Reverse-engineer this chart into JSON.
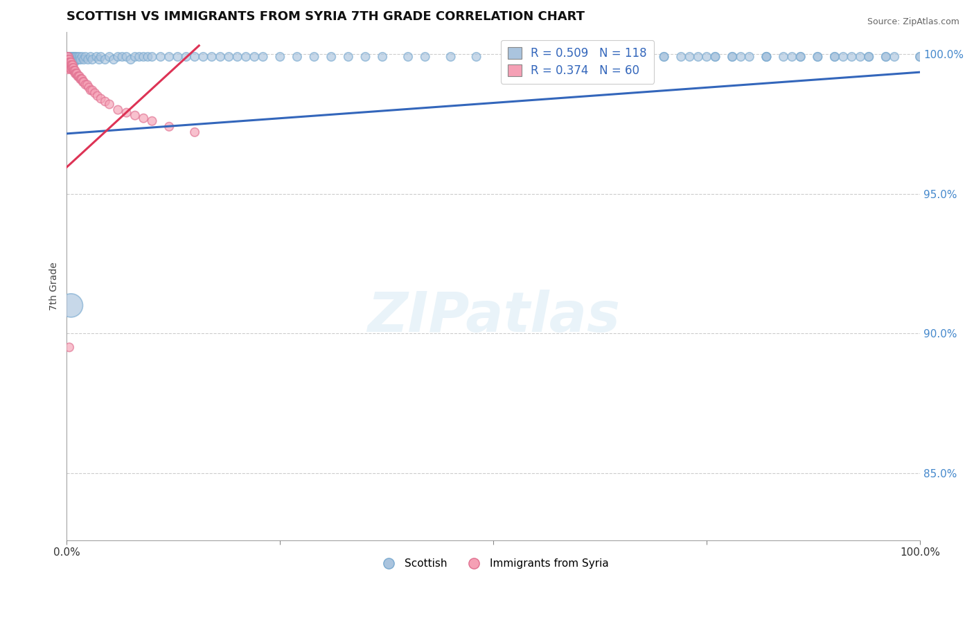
{
  "title": "SCOTTISH VS IMMIGRANTS FROM SYRIA 7TH GRADE CORRELATION CHART",
  "source": "Source: ZipAtlas.com",
  "ylabel": "7th Grade",
  "xlim": [
    0.0,
    1.0
  ],
  "ylim": [
    0.826,
    1.008
  ],
  "yticks": [
    0.85,
    0.9,
    0.95,
    1.0
  ],
  "ytick_labels": [
    "85.0%",
    "90.0%",
    "95.0%",
    "100.0%"
  ],
  "xtick_labels": [
    "0.0%",
    "",
    "",
    "",
    "100.0%"
  ],
  "xticks": [
    0.0,
    0.25,
    0.5,
    0.75,
    1.0
  ],
  "grid_color": "#cccccc",
  "background_color": "#ffffff",
  "watermark_text": "ZIPatlas",
  "legend_R_blue": "R = 0.509",
  "legend_N_blue": "N = 118",
  "legend_R_pink": "R = 0.374",
  "legend_N_pink": "N = 60",
  "blue_color": "#aac4de",
  "blue_edge_color": "#7aaad0",
  "blue_line_color": "#3366bb",
  "pink_color": "#f5a0b5",
  "pink_edge_color": "#e07090",
  "pink_line_color": "#dd3355",
  "tick_color": "#4488cc",
  "blue_scatter_x": [
    0.001,
    0.001,
    0.001,
    0.001,
    0.002,
    0.002,
    0.002,
    0.002,
    0.003,
    0.003,
    0.003,
    0.004,
    0.004,
    0.004,
    0.005,
    0.005,
    0.005,
    0.006,
    0.006,
    0.006,
    0.007,
    0.007,
    0.008,
    0.008,
    0.009,
    0.009,
    0.01,
    0.01,
    0.011,
    0.012,
    0.013,
    0.014,
    0.015,
    0.016,
    0.018,
    0.02,
    0.022,
    0.025,
    0.028,
    0.03,
    0.035,
    0.038,
    0.04,
    0.045,
    0.05,
    0.055,
    0.06,
    0.065,
    0.07,
    0.075,
    0.08,
    0.085,
    0.09,
    0.095,
    0.1,
    0.11,
    0.12,
    0.13,
    0.14,
    0.15,
    0.16,
    0.17,
    0.18,
    0.19,
    0.2,
    0.21,
    0.22,
    0.23,
    0.25,
    0.27,
    0.29,
    0.31,
    0.33,
    0.35,
    0.37,
    0.4,
    0.42,
    0.45,
    0.48,
    0.52,
    0.55,
    0.58,
    0.61,
    0.64,
    0.67,
    0.7,
    0.73,
    0.76,
    0.79,
    0.82,
    0.85,
    0.88,
    0.91,
    0.94,
    0.97,
    1.0,
    0.75,
    0.78,
    0.82,
    0.86,
    0.9,
    0.93,
    0.96,
    1.0,
    0.7,
    0.72,
    0.74,
    0.76,
    0.78,
    0.8,
    0.82,
    0.84,
    0.86,
    0.88,
    0.9,
    0.92,
    0.94,
    0.96,
    0.005
  ],
  "blue_scatter_y": [
    0.999,
    0.998,
    0.997,
    0.9985,
    0.999,
    0.998,
    0.997,
    0.9975,
    0.999,
    0.998,
    0.997,
    0.999,
    0.998,
    0.997,
    0.999,
    0.998,
    0.9965,
    0.999,
    0.998,
    0.997,
    0.999,
    0.998,
    0.999,
    0.998,
    0.999,
    0.997,
    0.999,
    0.998,
    0.999,
    0.998,
    0.999,
    0.998,
    0.999,
    0.998,
    0.999,
    0.998,
    0.999,
    0.998,
    0.999,
    0.998,
    0.999,
    0.998,
    0.999,
    0.998,
    0.999,
    0.998,
    0.999,
    0.999,
    0.999,
    0.998,
    0.999,
    0.999,
    0.999,
    0.999,
    0.999,
    0.999,
    0.999,
    0.999,
    0.999,
    0.999,
    0.999,
    0.999,
    0.999,
    0.999,
    0.999,
    0.999,
    0.999,
    0.999,
    0.999,
    0.999,
    0.999,
    0.999,
    0.999,
    0.999,
    0.999,
    0.999,
    0.999,
    0.999,
    0.999,
    0.999,
    0.999,
    0.999,
    0.999,
    0.999,
    0.999,
    0.999,
    0.999,
    0.999,
    0.999,
    0.999,
    0.999,
    0.999,
    0.999,
    0.999,
    0.999,
    0.999,
    0.999,
    0.999,
    0.999,
    0.999,
    0.999,
    0.999,
    0.999,
    0.999,
    0.999,
    0.999,
    0.999,
    0.999,
    0.999,
    0.999,
    0.999,
    0.999,
    0.999,
    0.999,
    0.999,
    0.999,
    0.999,
    0.999,
    0.91
  ],
  "blue_scatter_sizes": [
    80,
    80,
    80,
    80,
    80,
    80,
    80,
    80,
    80,
    80,
    80,
    80,
    80,
    80,
    80,
    80,
    80,
    80,
    80,
    80,
    80,
    80,
    80,
    80,
    80,
    80,
    80,
    80,
    80,
    80,
    80,
    80,
    80,
    80,
    80,
    80,
    80,
    80,
    80,
    80,
    80,
    80,
    80,
    80,
    80,
    80,
    80,
    80,
    80,
    80,
    80,
    80,
    80,
    80,
    80,
    80,
    80,
    80,
    80,
    80,
    80,
    80,
    80,
    80,
    80,
    80,
    80,
    80,
    80,
    80,
    80,
    80,
    80,
    80,
    80,
    80,
    80,
    80,
    80,
    80,
    80,
    80,
    80,
    80,
    80,
    80,
    80,
    80,
    80,
    80,
    80,
    80,
    80,
    80,
    80,
    80,
    80,
    80,
    80,
    80,
    80,
    80,
    80,
    80,
    80,
    80,
    80,
    80,
    80,
    80,
    80,
    80,
    80,
    80,
    80,
    80,
    80,
    80,
    600
  ],
  "pink_scatter_x": [
    0.001,
    0.001,
    0.001,
    0.001,
    0.001,
    0.001,
    0.002,
    0.002,
    0.002,
    0.002,
    0.002,
    0.003,
    0.003,
    0.003,
    0.003,
    0.004,
    0.004,
    0.004,
    0.005,
    0.005,
    0.005,
    0.006,
    0.006,
    0.007,
    0.007,
    0.008,
    0.008,
    0.009,
    0.01,
    0.01,
    0.011,
    0.012,
    0.013,
    0.014,
    0.015,
    0.016,
    0.017,
    0.018,
    0.019,
    0.02,
    0.022,
    0.024,
    0.026,
    0.028,
    0.03,
    0.033,
    0.036,
    0.04,
    0.045,
    0.05,
    0.06,
    0.07,
    0.08,
    0.09,
    0.1,
    0.12,
    0.15,
    0.003
  ],
  "pink_scatter_y": [
    0.999,
    0.998,
    0.997,
    0.996,
    0.995,
    0.9945,
    0.999,
    0.998,
    0.997,
    0.996,
    0.9955,
    0.998,
    0.997,
    0.996,
    0.995,
    0.997,
    0.996,
    0.995,
    0.997,
    0.996,
    0.9945,
    0.996,
    0.995,
    0.996,
    0.995,
    0.995,
    0.994,
    0.994,
    0.994,
    0.993,
    0.993,
    0.993,
    0.992,
    0.992,
    0.992,
    0.991,
    0.991,
    0.991,
    0.99,
    0.99,
    0.989,
    0.989,
    0.988,
    0.987,
    0.987,
    0.986,
    0.985,
    0.984,
    0.983,
    0.982,
    0.98,
    0.979,
    0.978,
    0.977,
    0.976,
    0.974,
    0.972,
    0.895
  ],
  "pink_scatter_sizes": [
    80,
    80,
    80,
    80,
    80,
    80,
    80,
    80,
    80,
    80,
    80,
    80,
    80,
    80,
    80,
    80,
    80,
    80,
    80,
    80,
    80,
    80,
    80,
    80,
    80,
    80,
    80,
    80,
    80,
    80,
    80,
    80,
    80,
    80,
    80,
    80,
    80,
    80,
    80,
    80,
    80,
    80,
    80,
    80,
    80,
    80,
    80,
    80,
    80,
    80,
    80,
    80,
    80,
    80,
    80,
    80,
    80,
    80
  ],
  "blue_trend_x": [
    0.0,
    1.0
  ],
  "blue_trend_y": [
    0.9715,
    0.9935
  ],
  "pink_trend_x": [
    0.0,
    0.155
  ],
  "pink_trend_y": [
    0.9595,
    1.003
  ],
  "legend_fontsize": 12,
  "title_fontsize": 13,
  "ylabel_fontsize": 10
}
